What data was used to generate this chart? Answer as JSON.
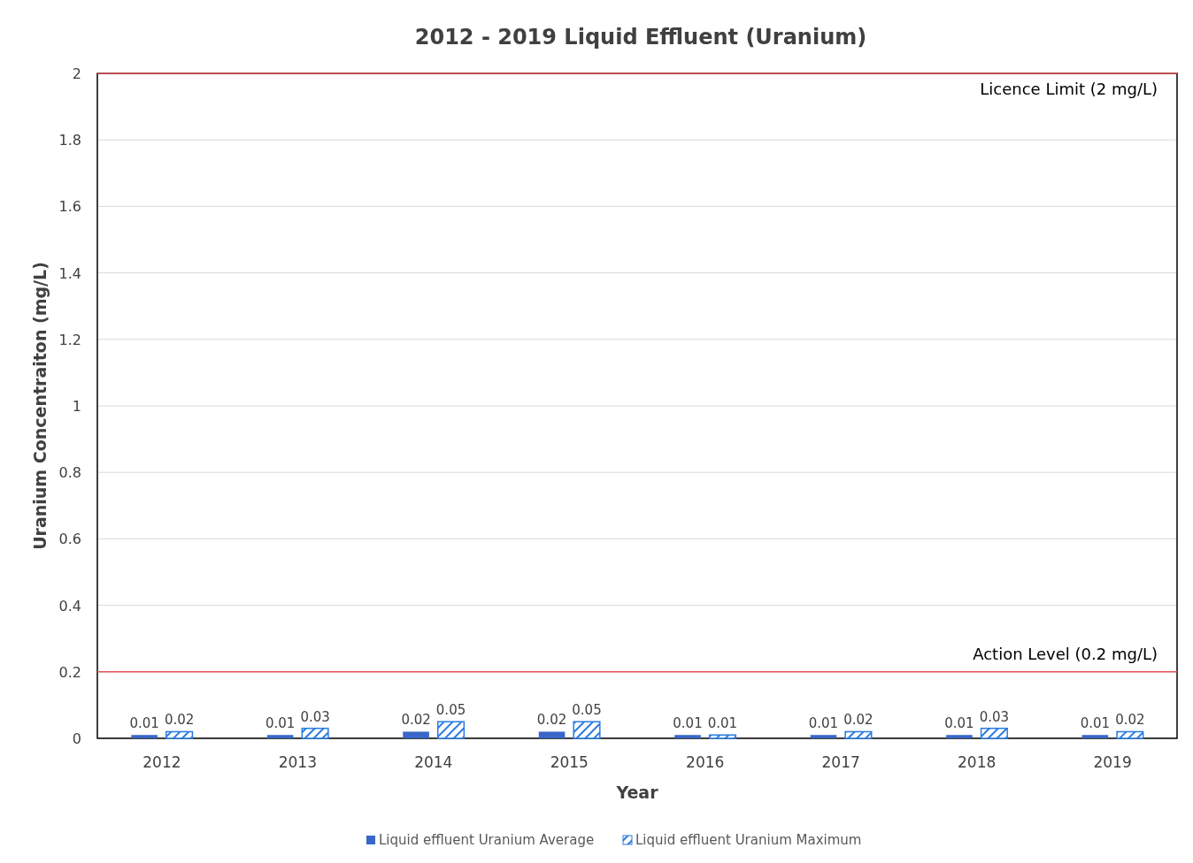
{
  "chart_data": {
    "type": "bar",
    "title": "2012 - 2019 Liquid Effluent (Uranium)",
    "xlabel": "Year",
    "ylabel": "Uranium Concentraiton (mg/L)",
    "categories": [
      "2012",
      "2013",
      "2014",
      "2015",
      "2016",
      "2017",
      "2018",
      "2019"
    ],
    "series": [
      {
        "name": "Liquid effluent Uranium Average",
        "color": "#3a66c8",
        "values": [
          0.01,
          0.01,
          0.02,
          0.02,
          0.01,
          0.01,
          0.01,
          0.01
        ]
      },
      {
        "name": "Liquid effluent Uranium Maximum",
        "color": "#2a7be0",
        "values": [
          0.02,
          0.03,
          0.05,
          0.05,
          0.01,
          0.02,
          0.03,
          0.02
        ]
      }
    ],
    "ylim": [
      0,
      2
    ],
    "yticks": [
      0,
      0.2,
      0.4,
      0.6,
      0.8,
      1,
      1.2,
      1.4,
      1.6,
      1.8,
      2
    ],
    "grid": "y",
    "legend": "bottom",
    "data_labels": true,
    "ref_lines": [
      {
        "axis": "y",
        "value": 2,
        "label": "Licence Limit (2 mg/L)",
        "color": "#e8535a"
      },
      {
        "axis": "y",
        "value": 0.2,
        "label": "Action Level (0.2 mg/L)",
        "color": "#e8535a"
      }
    ]
  }
}
